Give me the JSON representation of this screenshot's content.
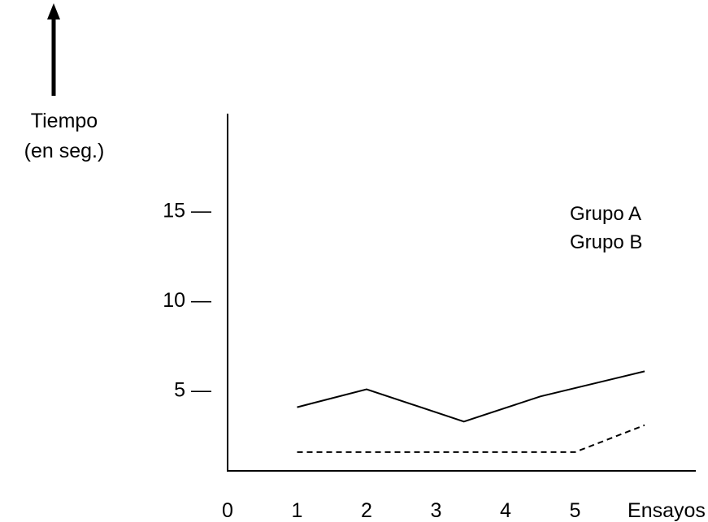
{
  "chart_data": {
    "type": "line",
    "ylabel": [
      "Tiempo",
      "(en seg.)"
    ],
    "xlabel": "Ensayos",
    "x_ticks": [
      "0",
      "1",
      "2",
      "3",
      "4",
      "5"
    ],
    "y_ticks": [
      "15 —",
      "10 —",
      "5 —"
    ],
    "y_tick_values": [
      15,
      10,
      5
    ],
    "xlim": [
      0,
      6.4
    ],
    "ylim": [
      0,
      20
    ],
    "legend_position": "top-right",
    "series": [
      {
        "name": "Grupo A",
        "line_style": "solid",
        "points": [
          [
            1,
            4
          ],
          [
            2,
            5
          ],
          [
            3.4,
            3.2
          ],
          [
            4.5,
            4.6
          ],
          [
            6,
            6
          ]
        ]
      },
      {
        "name": "Grupo B",
        "line_style": "dashed",
        "points": [
          [
            1,
            1.5
          ],
          [
            5,
            1.5
          ],
          [
            6,
            3
          ]
        ]
      }
    ],
    "grid": false,
    "colors": {
      "lines": "#000000",
      "background": "#ffffff"
    }
  }
}
